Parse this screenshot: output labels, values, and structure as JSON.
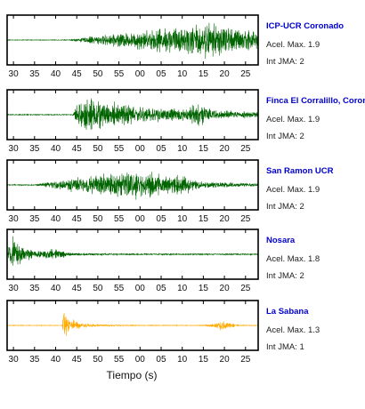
{
  "chart_data": {
    "type": "line",
    "xlabel": "Tiempo (s)",
    "x_tick_labels": [
      "30",
      "35",
      "40",
      "45",
      "50",
      "55",
      "00",
      "05",
      "10",
      "15",
      "20",
      "25"
    ],
    "xlim_seconds": [
      28.5,
      88.0
    ],
    "series": [
      {
        "name": "ICP-UCR Coronado",
        "accel_label": "Acel. Max. 1.9",
        "int_label": "Int JMA: 2",
        "color": "#006400",
        "onset": 43.0,
        "peak_time": 73.0,
        "amp": 0.95,
        "decay": 0.015,
        "noise": 0.02,
        "burst_time": 78.0,
        "burst_amp": 0.3
      },
      {
        "name": "Finca El Corralillo, Corona",
        "accel_label": "Acel. Max. 1.9",
        "int_label": "Int JMA: 2",
        "color": "#006400",
        "onset": 44.0,
        "peak_time": 46.0,
        "amp": 0.95,
        "decay": 0.02,
        "noise": 0.03,
        "burst_time": 74.0,
        "burst_amp": 0.35
      },
      {
        "name": "San Ramon UCR",
        "accel_label": "Acel. Max. 1.9",
        "int_label": "Int JMA: 2",
        "color": "#006400",
        "onset": 35.0,
        "peak_time": 59.5,
        "amp": 0.95,
        "decay": 0.05,
        "noise": 0.03,
        "burst_time": 70.0,
        "burst_amp": 0.3
      },
      {
        "name": "Nosara",
        "accel_label": "Acel. Max. 1.8",
        "int_label": "Int JMA: 2",
        "color": "#006400",
        "onset": 28.5,
        "peak_time": 29.5,
        "amp": 0.95,
        "decay": 0.12,
        "noise": 0.04,
        "burst_time": 40.0,
        "burst_amp": 0.2
      },
      {
        "name": "La Sabana",
        "accel_label": "Acel. Max. 1.3",
        "int_label": "Int JMA: 1",
        "color": "#ffaa00",
        "onset": 41.5,
        "peak_time": 41.8,
        "amp": 0.95,
        "decay": 0.2,
        "noise": 0.02,
        "burst_time": 79.5,
        "burst_amp": 0.28
      }
    ]
  }
}
